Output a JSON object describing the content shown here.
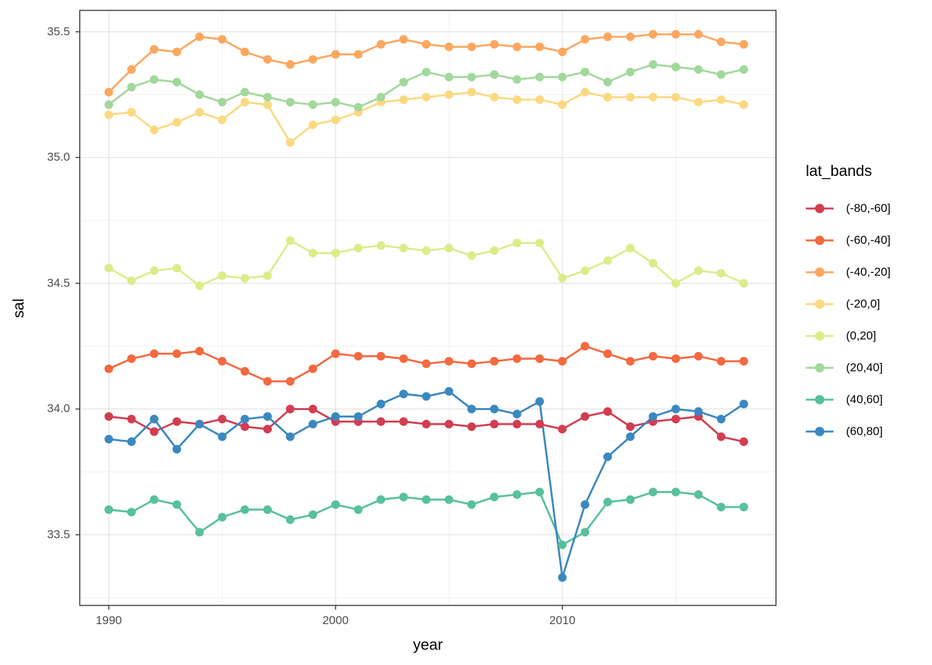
{
  "chart_data": {
    "type": "line",
    "title": "",
    "xlabel": "year",
    "ylabel": "sal",
    "x": [
      1990,
      1991,
      1992,
      1993,
      1994,
      1995,
      1996,
      1997,
      1998,
      1999,
      2000,
      2001,
      2002,
      2003,
      2004,
      2005,
      2006,
      2007,
      2008,
      2009,
      2010,
      2011,
      2012,
      2013,
      2014,
      2015,
      2016,
      2017,
      2018
    ],
    "xlim": [
      1988.72,
      2019.42
    ],
    "ylim": [
      33.219,
      35.585
    ],
    "x_ticks": {
      "values": [
        1990,
        2000,
        2010
      ],
      "labels": [
        "1990",
        "2000",
        "2010"
      ]
    },
    "x_minor": [
      1995,
      2005,
      2015
    ],
    "y_ticks": {
      "values": [
        33.5,
        34.0,
        34.5,
        35.0,
        35.5
      ],
      "labels": [
        "33.5",
        "34.0",
        "34.5",
        "35.0",
        "35.5"
      ]
    },
    "y_minor": [
      33.25,
      33.75,
      34.25,
      34.75,
      35.25
    ],
    "grid": true,
    "legend": {
      "title": "lat_bands",
      "position": "right"
    },
    "series": [
      {
        "name": "(-80,-60]",
        "color": "#d23d50",
        "values": [
          33.97,
          33.96,
          33.91,
          33.95,
          33.94,
          33.96,
          33.93,
          33.92,
          34.0,
          34.0,
          33.95,
          33.95,
          33.95,
          33.95,
          33.94,
          33.94,
          33.93,
          33.94,
          33.94,
          33.94,
          33.92,
          33.97,
          33.99,
          33.93,
          33.95,
          33.96,
          33.97,
          33.89,
          33.87
        ]
      },
      {
        "name": "(-60,-40]",
        "color": "#f4693f",
        "values": [
          34.16,
          34.2,
          34.22,
          34.22,
          34.23,
          34.19,
          34.15,
          34.11,
          34.11,
          34.16,
          34.22,
          34.21,
          34.21,
          34.2,
          34.18,
          34.19,
          34.18,
          34.19,
          34.2,
          34.2,
          34.19,
          34.25,
          34.22,
          34.19,
          34.21,
          34.2,
          34.21,
          34.19,
          34.19
        ]
      },
      {
        "name": "(-40,-20]",
        "color": "#fca75f",
        "values": [
          35.26,
          35.35,
          35.43,
          35.42,
          35.48,
          35.47,
          35.42,
          35.39,
          35.37,
          35.39,
          35.41,
          35.41,
          35.45,
          35.47,
          35.45,
          35.44,
          35.44,
          35.45,
          35.44,
          35.44,
          35.42,
          35.47,
          35.48,
          35.48,
          35.49,
          35.49,
          35.49,
          35.46,
          35.45
        ]
      },
      {
        "name": "(-20,0]",
        "color": "#fbd981",
        "values": [
          35.17,
          35.18,
          35.11,
          35.14,
          35.18,
          35.15,
          35.22,
          35.21,
          35.06,
          35.13,
          35.15,
          35.18,
          35.22,
          35.23,
          35.24,
          35.25,
          35.26,
          35.24,
          35.23,
          35.23,
          35.21,
          35.26,
          35.24,
          35.24,
          35.24,
          35.24,
          35.22,
          35.23,
          35.21
        ]
      },
      {
        "name": "(0,20]",
        "color": "#dcec89",
        "values": [
          34.56,
          34.51,
          34.55,
          34.56,
          34.49,
          34.53,
          34.52,
          34.53,
          34.67,
          34.62,
          34.62,
          34.64,
          34.65,
          34.64,
          34.63,
          34.64,
          34.61,
          34.63,
          34.66,
          34.66,
          34.52,
          34.55,
          34.59,
          34.64,
          34.58,
          34.5,
          34.55,
          34.54,
          34.5
        ]
      },
      {
        "name": "(20,40]",
        "color": "#a2d89c",
        "values": [
          35.21,
          35.28,
          35.31,
          35.3,
          35.25,
          35.22,
          35.26,
          35.24,
          35.22,
          35.21,
          35.22,
          35.2,
          35.24,
          35.3,
          35.34,
          35.32,
          35.32,
          35.33,
          35.31,
          35.32,
          35.32,
          35.34,
          35.3,
          35.34,
          35.37,
          35.36,
          35.35,
          35.33,
          35.35
        ]
      },
      {
        "name": "(40,60]",
        "color": "#57c09c",
        "values": [
          33.6,
          33.59,
          33.64,
          33.62,
          33.51,
          33.57,
          33.6,
          33.6,
          33.56,
          33.58,
          33.62,
          33.6,
          33.64,
          33.65,
          33.64,
          33.64,
          33.62,
          33.65,
          33.66,
          33.67,
          33.46,
          33.51,
          33.63,
          33.64,
          33.67,
          33.67,
          33.66,
          33.61,
          33.61
        ]
      },
      {
        "name": "(60,80]",
        "color": "#3a88c0",
        "values": [
          33.88,
          33.87,
          33.96,
          33.84,
          33.94,
          33.89,
          33.96,
          33.97,
          33.89,
          33.94,
          33.97,
          33.97,
          34.02,
          34.06,
          34.05,
          34.07,
          34.0,
          34.0,
          33.98,
          34.03,
          33.33,
          33.62,
          33.81,
          33.89,
          33.97,
          34.0,
          33.99,
          33.96,
          34.02
        ]
      }
    ],
    "style": {
      "panel_background": "#ffffff",
      "major_grid": "#e3e3e3",
      "minor_grid": "#efefef",
      "panel_border": "#3a3a3a",
      "axis_tick_color": "#333333",
      "tick_label_color": "#4d4d4d",
      "title_color": "#000000",
      "line_width": 2.8,
      "point_radius": 6.2
    }
  }
}
